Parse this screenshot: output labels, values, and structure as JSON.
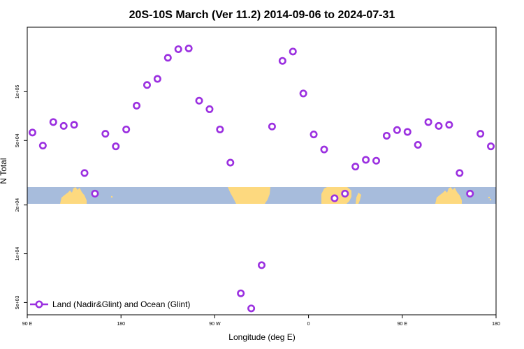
{
  "chart_data": {
    "type": "scatter",
    "title": "20S-10S March (Ver 11.2)   2014-09-06 to 2024-07-31",
    "xlabel": "Longitude (deg E)",
    "ylabel": "N Total",
    "xlim": [
      90,
      540
    ],
    "ylim": [
      4200,
      250000
    ],
    "yscale": "log",
    "x_ticks": [
      {
        "value": 90,
        "label": "90 E"
      },
      {
        "value": 180,
        "label": "180"
      },
      {
        "value": 270,
        "label": "90 W"
      },
      {
        "value": 360,
        "label": "0"
      },
      {
        "value": 450,
        "label": "90 E"
      },
      {
        "value": 540,
        "label": "180"
      }
    ],
    "y_ticks": [
      {
        "value": 5000,
        "label": "5e+03"
      },
      {
        "value": 10000,
        "label": "1e+04"
      },
      {
        "value": 20000,
        "label": "2e+04"
      },
      {
        "value": 50000,
        "label": "5e+04"
      },
      {
        "value": 100000,
        "label": "1e+05"
      }
    ],
    "map_strip": {
      "lat_range": "20S-10S",
      "ocean_color": "#a7bcdc",
      "land_color": "#fdd97f"
    },
    "series": [
      {
        "name": "Land (Nadir&Glint) and Ocean (Glint)",
        "color": "#9b30e0",
        "x": [
          95,
          105,
          115,
          125,
          135,
          145,
          155,
          165,
          175,
          185,
          195,
          205,
          215,
          225,
          235,
          245,
          255,
          265,
          275,
          285,
          295,
          305,
          315,
          325,
          335,
          345,
          355,
          365,
          375,
          385,
          395,
          405,
          415,
          425,
          435,
          445,
          455,
          465,
          475,
          485,
          495,
          505,
          515,
          525,
          535
        ],
        "y": [
          56000,
          46500,
          65000,
          61500,
          62500,
          31500,
          23500,
          55000,
          46000,
          58500,
          82000,
          110000,
          120000,
          162000,
          183000,
          185000,
          88000,
          78000,
          58500,
          36500,
          5700,
          4600,
          8500,
          61000,
          155000,
          177000,
          97500,
          54500,
          44000,
          22000,
          23500,
          34500,
          38000,
          37500,
          53500,
          58000,
          56500,
          47000,
          65000,
          61500,
          62500,
          31500,
          23500,
          55000,
          46000
        ]
      }
    ]
  }
}
